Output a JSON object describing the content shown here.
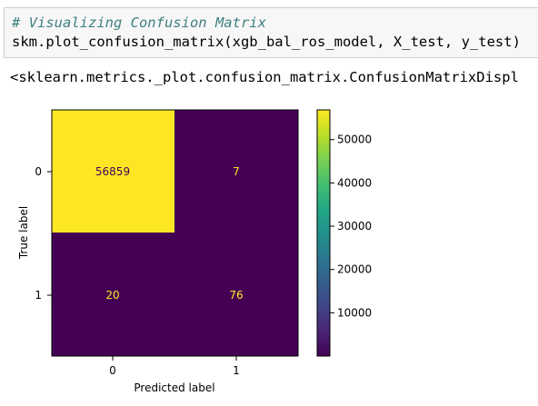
{
  "code_cell": {
    "comment": "# Visualizing Confusion Matrix",
    "code": "skm.plot_confusion_matrix(xgb_bal_ros_model, X_test, y_test)"
  },
  "output_text": "<sklearn.metrics._plot.confusion_matrix.ConfusionMatrixDispl",
  "chart_data": {
    "type": "heatmap",
    "xlabel": "Predicted label",
    "ylabel": "True label",
    "x_ticks": [
      "0",
      "1"
    ],
    "y_ticks": [
      "0",
      "1"
    ],
    "matrix": [
      [
        56859,
        7
      ],
      [
        20,
        76
      ]
    ],
    "colormap": "viridis",
    "colorbar": {
      "ticks": [
        10000,
        20000,
        30000,
        40000,
        50000
      ],
      "tick_labels": [
        "10000",
        "20000",
        "30000",
        "40000",
        "50000"
      ],
      "vmin": 7,
      "vmax": 56859
    },
    "colors": {
      "high": "#fde725",
      "low": "#440154",
      "text_on_high": "#440154",
      "text_on_low": "#fde725"
    }
  }
}
